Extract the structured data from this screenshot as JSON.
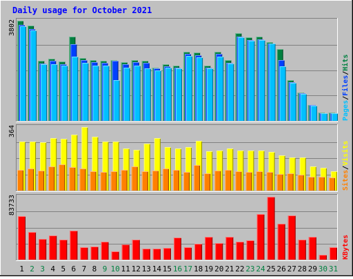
{
  "chart_data": {
    "type": "bar",
    "title": "Daily usage for October 2021",
    "categories": [
      "1",
      "2",
      "3",
      "4",
      "5",
      "6",
      "7",
      "8",
      "9",
      "10",
      "11",
      "12",
      "13",
      "14",
      "15",
      "16",
      "17",
      "18",
      "19",
      "20",
      "21",
      "22",
      "23",
      "24",
      "25",
      "26",
      "27",
      "28",
      "29",
      "30",
      "31"
    ],
    "weekend_days": [
      "2",
      "3",
      "9",
      "10",
      "16",
      "17",
      "23",
      "24",
      "30",
      "31"
    ],
    "panels": [
      {
        "id": "hits_files_pages",
        "max_label": "3802",
        "ylim": [
          0,
          3802
        ],
        "ylabels": [
          {
            "text": "Hits",
            "color": "#008040"
          },
          {
            "text": "/",
            "color": "#000000"
          },
          {
            "text": "Files",
            "color": "#0040ff"
          },
          {
            "text": "/",
            "color": "#000000"
          },
          {
            "text": "Pages",
            "color": "#00c0ff"
          }
        ],
        "series": [
          {
            "name": "Hits",
            "color": "#008040",
            "values": [
              3802,
              3620,
              2270,
              2360,
              2250,
              3200,
              2390,
              2300,
              2290,
              2320,
              2230,
              2300,
              2270,
              2020,
              2140,
              2090,
              2610,
              2590,
              2090,
              2610,
              2300,
              3330,
              3160,
              3190,
              3000,
              2740,
              1540,
              1080,
              600,
              310,
              310
            ]
          },
          {
            "name": "Files",
            "color": "#0040ff",
            "values": [
              3650,
              3480,
              2180,
              2280,
              2160,
              2900,
              2300,
              2220,
              2200,
              2270,
              2140,
              2230,
              2190,
              1980,
              2080,
              2020,
              2540,
              2500,
              2020,
              2540,
              2210,
              3210,
              3080,
              3090,
              2930,
              2300,
              1480,
              1040,
              590,
              300,
              300
            ]
          },
          {
            "name": "Pages",
            "color": "#00c0ff",
            "values": [
              3600,
              3430,
              2150,
              2140,
              2100,
              2450,
              2200,
              2100,
              2100,
              1560,
              2010,
              2100,
              1980,
              1910,
              2030,
              1980,
              2470,
              2410,
              1990,
              2450,
              2170,
              3170,
              3040,
              3060,
              2930,
              2070,
              1440,
              1030,
              580,
              300,
              290
            ]
          }
        ]
      },
      {
        "id": "visits_sites",
        "max_label": "364",
        "ylim": [
          0,
          364
        ],
        "ylabels": [
          {
            "text": "Visits",
            "color": "#ffff00"
          },
          {
            "text": "/",
            "color": "#000000"
          },
          {
            "text": "Sites",
            "color": "#ff8000"
          }
        ],
        "series": [
          {
            "name": "Visits",
            "color": "#ffff00",
            "values": [
              280,
              280,
              275,
              300,
              295,
              320,
              364,
              310,
              280,
              280,
              240,
              235,
              270,
              300,
              250,
              240,
              250,
              285,
              225,
              230,
              240,
              230,
              230,
              230,
              220,
              200,
              190,
              190,
              140,
              130,
              110
            ]
          },
          {
            "name": "Sites",
            "color": "#ff8000",
            "values": [
              120,
              125,
              115,
              140,
              150,
              135,
              125,
              110,
              105,
              110,
              120,
              140,
              110,
              115,
              125,
              120,
              105,
              145,
              100,
              115,
              120,
              110,
              105,
              110,
              105,
              95,
              100,
              90,
              80,
              80,
              75
            ]
          }
        ]
      },
      {
        "id": "kbytes",
        "max_label": "83733",
        "ylim": [
          0,
          83733
        ],
        "ylabels": [
          {
            "text": "KBytes",
            "color": "#ff0000"
          }
        ],
        "series": [
          {
            "name": "KBytes",
            "color": "#ff0000",
            "values": [
              58000,
              37000,
              27500,
              32000,
              26500,
              39000,
              17000,
              17500,
              23500,
              11500,
              20500,
              27000,
              14500,
              14500,
              16000,
              29000,
              17000,
              21500,
              30000,
              22000,
              30000,
              23500,
              25500,
              61000,
              83733,
              48000,
              59000,
              26500,
              30000,
              6500,
              16500
            ]
          }
        ]
      }
    ]
  }
}
